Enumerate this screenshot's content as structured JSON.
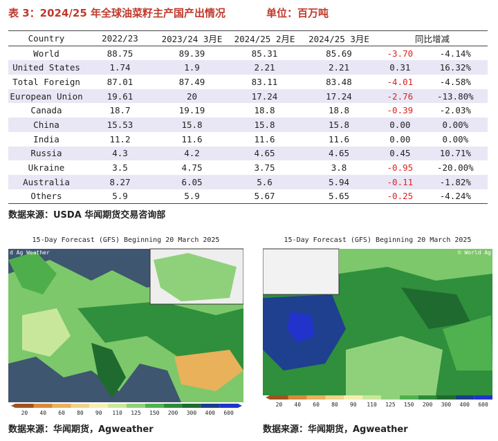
{
  "header": {
    "title": "表 3：2024/25 年全球油菜籽主产国产出情况",
    "unit": "单位：百万吨"
  },
  "table": {
    "columns": [
      "Country",
      "2022/23",
      "2023/24 3月E",
      "2024/25 2月E",
      "2024/25 3月E",
      "同比增减"
    ],
    "rows": [
      [
        "World",
        "88.75",
        "89.39",
        "85.31",
        "85.69",
        "-3.70",
        "-4.14%"
      ],
      [
        "United States",
        "1.74",
        "1.9",
        "2.21",
        "2.21",
        "0.31",
        "16.32%"
      ],
      [
        "Total Foreign",
        "87.01",
        "87.49",
        "83.11",
        "83.48",
        "-4.01",
        "-4.58%"
      ],
      [
        "European Union",
        "19.61",
        "20",
        "17.24",
        "17.24",
        "-2.76",
        "-13.80%"
      ],
      [
        "Canada",
        "18.7",
        "19.19",
        "18.8",
        "18.8",
        "-0.39",
        "-2.03%"
      ],
      [
        "China",
        "15.53",
        "15.8",
        "15.8",
        "15.8",
        "0.00",
        "0.00%"
      ],
      [
        "India",
        "11.2",
        "11.6",
        "11.6",
        "11.6",
        "0.00",
        "0.00%"
      ],
      [
        "Russia",
        "4.3",
        "4.2",
        "4.65",
        "4.65",
        "0.45",
        "10.71%"
      ],
      [
        "Ukraine",
        "3.5",
        "4.75",
        "3.75",
        "3.8",
        "-0.95",
        "-20.00%"
      ],
      [
        "Australia",
        "8.27",
        "6.05",
        "5.6",
        "5.94",
        "-0.11",
        "-1.82%"
      ],
      [
        "Others",
        "5.9",
        "5.9",
        "5.67",
        "5.65",
        "-0.25",
        "-4.24%"
      ]
    ]
  },
  "table_source": "数据来源：USDA 华闻期货交易咨询部",
  "maps": [
    {
      "title": "15-Day Forecast (GFS) Beginning 20 March 2025",
      "credit": "d Ag Weather",
      "legend": [
        20,
        40,
        60,
        80,
        90,
        110,
        125,
        150,
        200,
        300,
        400,
        600
      ],
      "source": "数据来源：华闻期货，Agweather"
    },
    {
      "title": "15-Day Forecast (GFS) Beginning 20 March 2025",
      "credit": "© World Ag",
      "legend": [
        20,
        40,
        60,
        80,
        90,
        110,
        125,
        150,
        200,
        300,
        400,
        600
      ],
      "source": "数据来源：华闻期货，Agweather"
    }
  ]
}
